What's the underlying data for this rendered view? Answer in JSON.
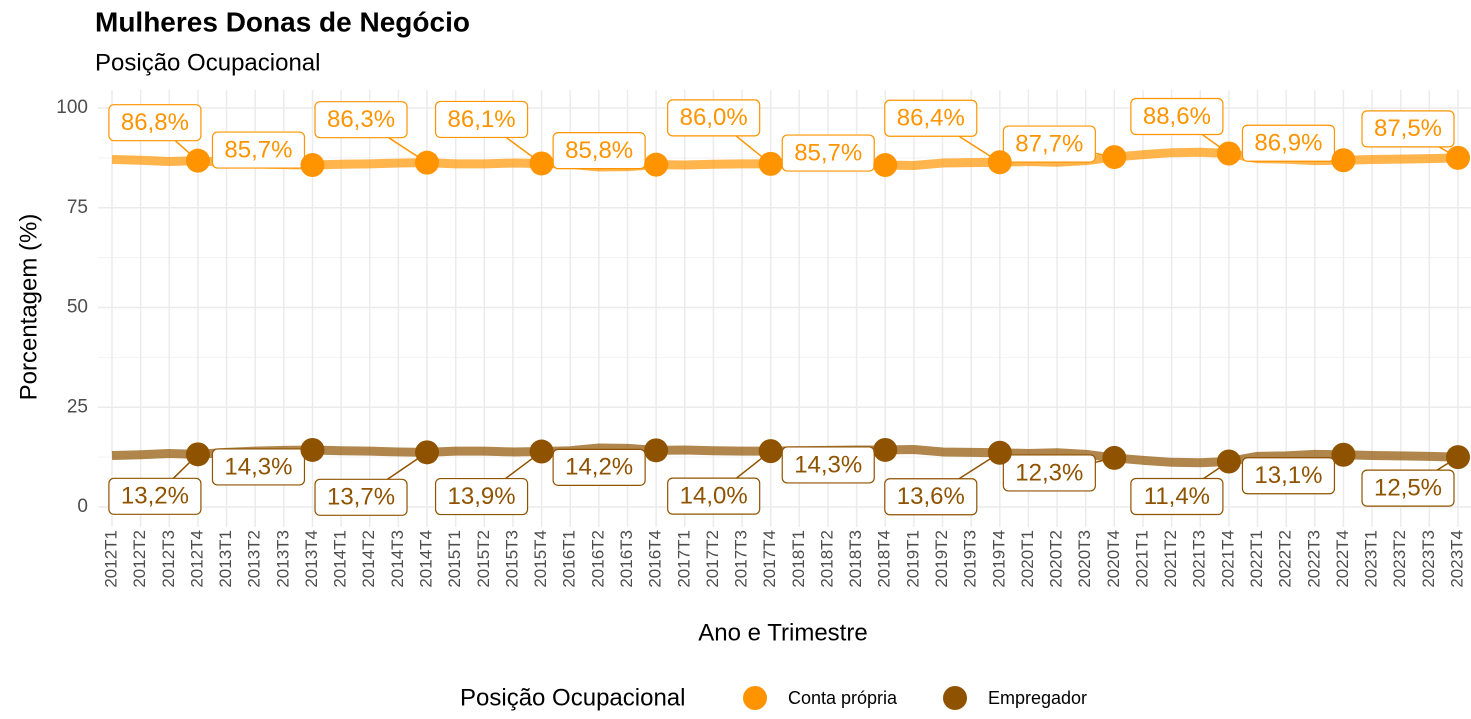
{
  "chart_data": {
    "type": "line",
    "title": "Mulheres Donas de Negócio",
    "subtitle": "Posição Ocupacional",
    "x_label": "Ano e Trimestre",
    "y_label": "Porcentagem (%)",
    "legend_title": "Posição Ocupacional",
    "legend_position": "bottom",
    "grid": true,
    "categories": [
      "2012T1",
      "2012T2",
      "2012T3",
      "2012T4",
      "2013T1",
      "2013T2",
      "2013T3",
      "2013T4",
      "2014T1",
      "2014T2",
      "2014T3",
      "2014T4",
      "2015T1",
      "2015T2",
      "2015T3",
      "2015T4",
      "2016T1",
      "2016T2",
      "2016T3",
      "2016T4",
      "2017T1",
      "2017T2",
      "2017T3",
      "2017T4",
      "2018T1",
      "2018T2",
      "2018T3",
      "2018T4",
      "2019T1",
      "2019T2",
      "2019T3",
      "2019T4",
      "2020T1",
      "2020T2",
      "2020T3",
      "2020T4",
      "2021T1",
      "2021T2",
      "2021T3",
      "2021T4",
      "2022T1",
      "2022T2",
      "2022T3",
      "2022T4",
      "2023T1",
      "2023T2",
      "2023T3",
      "2023T4"
    ],
    "ylim": [
      0,
      100
    ],
    "yticks": [
      0,
      25,
      50,
      75,
      100
    ],
    "series": [
      {
        "name": "Conta própria",
        "color": "#ff9400",
        "values": [
          87.1,
          86.9,
          86.6,
          86.8,
          86.3,
          86.0,
          85.8,
          85.7,
          85.9,
          86.0,
          86.2,
          86.3,
          86.0,
          86.0,
          86.2,
          86.1,
          85.9,
          85.2,
          85.3,
          85.8,
          85.7,
          85.9,
          86.0,
          86.0,
          85.9,
          85.8,
          85.7,
          85.7,
          85.6,
          86.2,
          86.3,
          86.4,
          86.6,
          86.4,
          86.8,
          87.7,
          88.3,
          88.8,
          88.9,
          88.6,
          87.3,
          87.2,
          86.8,
          86.9,
          87.1,
          87.2,
          87.3,
          87.5
        ],
        "value_labels": [
          null,
          null,
          null,
          "86,8%",
          null,
          null,
          null,
          "85,7%",
          null,
          null,
          null,
          "86,3%",
          null,
          null,
          null,
          "86,1%",
          null,
          null,
          null,
          "85,8%",
          null,
          null,
          null,
          "86,0%",
          null,
          null,
          null,
          "85,7%",
          null,
          null,
          null,
          "86,4%",
          null,
          null,
          null,
          "87,7%",
          null,
          null,
          null,
          "88,6%",
          null,
          null,
          null,
          "86,9%",
          null,
          null,
          null,
          "87,5%"
        ]
      },
      {
        "name": "Empregador",
        "color": "#8f5300",
        "values": [
          12.9,
          13.1,
          13.4,
          13.2,
          13.7,
          14.0,
          14.2,
          14.3,
          14.1,
          14.0,
          13.8,
          13.7,
          14.0,
          14.0,
          13.8,
          13.9,
          14.1,
          14.8,
          14.7,
          14.2,
          14.3,
          14.1,
          14.0,
          14.0,
          14.1,
          14.2,
          14.3,
          14.3,
          14.4,
          13.8,
          13.7,
          13.6,
          13.4,
          13.6,
          13.2,
          12.3,
          11.7,
          11.2,
          11.1,
          11.4,
          12.7,
          12.8,
          13.2,
          13.1,
          12.9,
          12.8,
          12.7,
          12.5
        ],
        "value_labels": [
          null,
          null,
          null,
          "13,2%",
          null,
          null,
          null,
          "14,3%",
          null,
          null,
          null,
          "13,7%",
          null,
          null,
          null,
          "13,9%",
          null,
          null,
          null,
          "14,2%",
          null,
          null,
          null,
          "14,0%",
          null,
          null,
          null,
          "14,3%",
          null,
          null,
          null,
          "13,6%",
          null,
          null,
          null,
          "12,3%",
          null,
          null,
          null,
          "11,4%",
          null,
          null,
          null,
          "13,1%",
          null,
          null,
          null,
          "12,5%"
        ]
      }
    ]
  }
}
